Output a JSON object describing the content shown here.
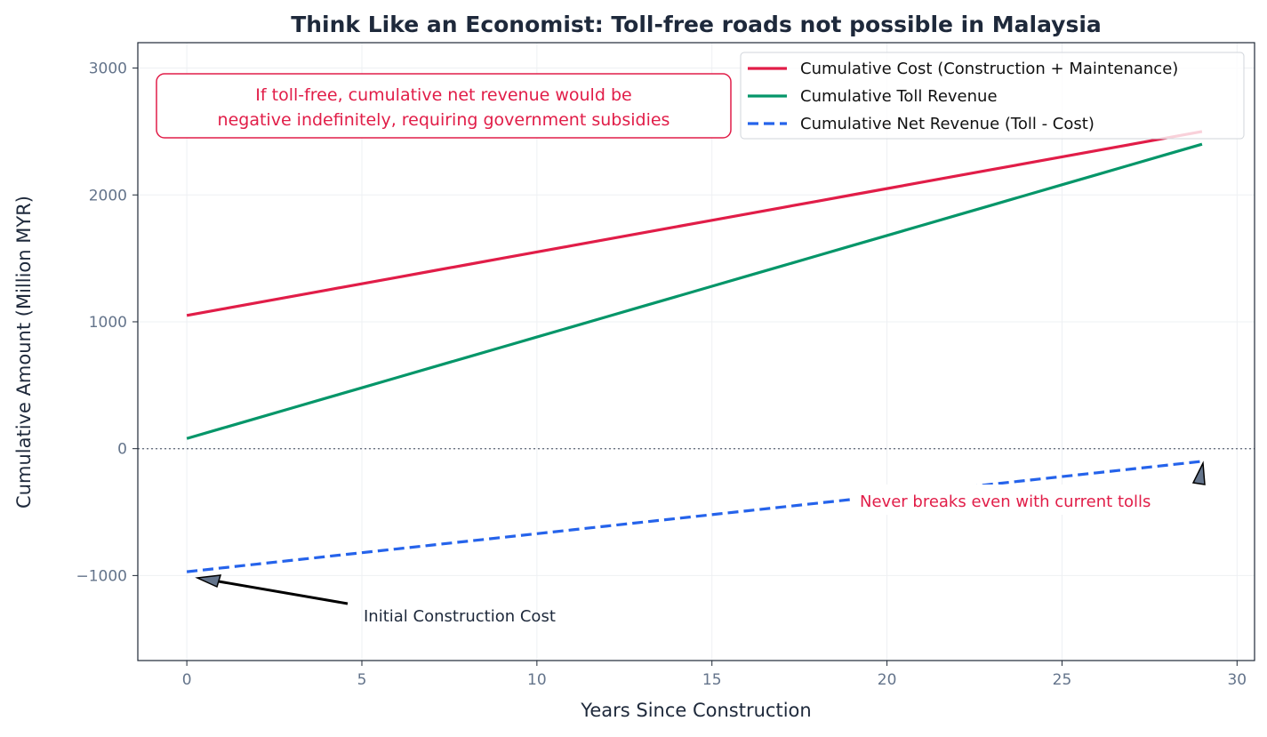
{
  "chart_data": {
    "type": "line",
    "title": "Think Like an Economist: Toll-free roads not possible in Malaysia",
    "xlabel": "Years Since Construction",
    "ylabel": "Cumulative Amount (Million MYR)",
    "xlim": [
      -1.4,
      30.5
    ],
    "ylim": [
      -1670,
      3200
    ],
    "xticks": [
      0,
      5,
      10,
      15,
      20,
      25,
      30
    ],
    "yticks": [
      -1000,
      0,
      1000,
      2000,
      3000
    ],
    "ytick_labels": [
      "−1000",
      "0",
      "1000",
      "2000",
      "3000"
    ],
    "grid": true,
    "legend_position": "top-right",
    "x": [
      0,
      1,
      2,
      3,
      4,
      5,
      6,
      7,
      8,
      9,
      10,
      11,
      12,
      13,
      14,
      15,
      16,
      17,
      18,
      19,
      20,
      21,
      22,
      23,
      24,
      25,
      26,
      27,
      28,
      29
    ],
    "series": [
      {
        "name": "Cumulative Cost (Construction + Maintenance)",
        "color": "#e11d48",
        "style": "solid",
        "values": [
          1050,
          1100,
          1150,
          1200,
          1250,
          1300,
          1350,
          1400,
          1450,
          1500,
          1550,
          1600,
          1650,
          1700,
          1750,
          1800,
          1850,
          1900,
          1950,
          2000,
          2050,
          2100,
          2150,
          2200,
          2250,
          2300,
          2350,
          2400,
          2450,
          2500
        ]
      },
      {
        "name": "Cumulative Toll Revenue",
        "color": "#059669",
        "style": "solid",
        "values": [
          80,
          160,
          240,
          320,
          400,
          480,
          560,
          640,
          720,
          800,
          880,
          960,
          1040,
          1120,
          1200,
          1280,
          1360,
          1440,
          1520,
          1600,
          1680,
          1760,
          1840,
          1920,
          2000,
          2080,
          2160,
          2240,
          2320,
          2400
        ]
      },
      {
        "name": "Cumulative Net Revenue (Toll - Cost)",
        "color": "#2563eb",
        "style": "dashed",
        "values": [
          -970,
          -940,
          -910,
          -880,
          -850,
          -820,
          -790,
          -760,
          -730,
          -700,
          -670,
          -640,
          -610,
          -580,
          -550,
          -520,
          -490,
          -460,
          -430,
          -400,
          -370,
          -340,
          -310,
          -280,
          -250,
          -220,
          -190,
          -160,
          -130,
          -100
        ]
      }
    ],
    "reference_line": {
      "y": 0,
      "style": "dotted"
    },
    "annotations": {
      "box_line1": "If toll-free, cumulative net revenue would be",
      "box_line2": "negative indefinitely, requiring government subsidies",
      "initial_cost": "Initial Construction Cost",
      "never_breaks": "Never breaks even with current tolls"
    }
  }
}
